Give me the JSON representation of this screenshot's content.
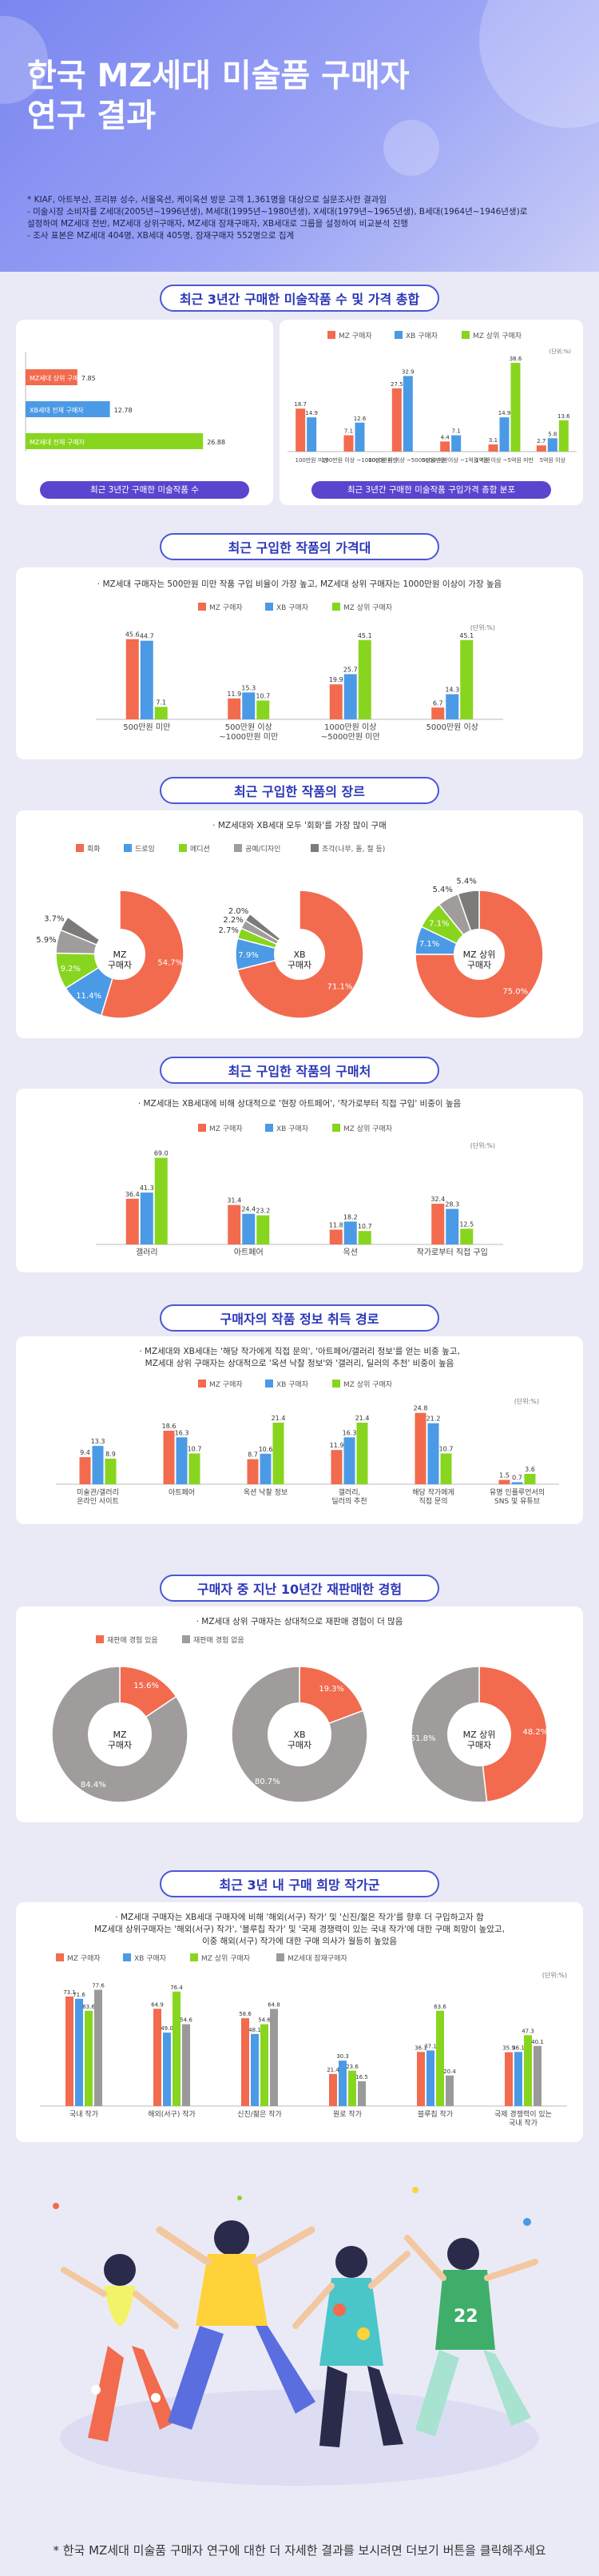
{
  "hero": {
    "title": "한국 MZ세대 미술품 구매자\n연구 결과",
    "notes": [
      "* KIAF, 아트부산, 프리뷰 성수, 서울옥션, 케이옥션 방문 고객 1,361명을 대상으로 실문조사한 결과임",
      "  - 미술시장 소비자를 Z세대(2005년~1996년생), M세대(1995년~1980년생), X세대(1979년~1965년생), B세대(1964년~1946년생)로\n    설정하여 MZ세대 전반, MZ세대 상위구매자, MZ세대 잠재구매자, XB세대로 그룹을 설정하여 비교분석 진행",
      "  - 조사 표본은 MZ세대 404명, XB세대 405명, 잠재구매자 552명으로 집계"
    ]
  },
  "colors": {
    "mz": "#f26b4e",
    "xb": "#4b9ae6",
    "top": "#88d51f",
    "latent": "#9a9a9a",
    "gray": "#a09c9c"
  },
  "sections": {
    "s1": {
      "title": "최근 3년간 구매한 미술작품 수 및 가격 총합",
      "left_label": "최근 3년간 구매한 미술작품 수",
      "right_label": "최근 3년간 구매한 미술작품 구입가격 총합 분포"
    },
    "s2": {
      "title": "최근 구입한 작품의 가격대",
      "desc": "· MZ세대 구매자는 500만원 미만 작품 구입 비율이 가장 높고, MZ세대 상위 구매자는 1000만원 이상이 가장 높음"
    },
    "s3": {
      "title": "최근 구입한 작품의 장르",
      "desc": "· MZ세대와 XB세대 모두 '회화'를 가장 많이 구매"
    },
    "s4": {
      "title": "최근 구입한 작품의 구매처",
      "desc": "· MZ세대는 XB세대에 비해 상대적으로 '현장 아트페어', '작가로부터 직접 구입' 비중이 높음"
    },
    "s5": {
      "title": "구매자의 작품 정보 취득 경로",
      "desc": "· MZ세대와 XB세대는 '해당 작가에게 직접 문의', '아트페어/갤러리 정보'를 얻는 비중 높고,\nMZ세대 상위 구매자는 상대적으로 '옥션 낙찰 정보'와 '갤러리, 딜러의 추천' 비중이 높음"
    },
    "s6": {
      "title": "구매자 중 지난 10년간 재판매한 경험",
      "desc": "· MZ세대 상위 구매자는 상대적으로 재판매 경험이 더 많음"
    },
    "s7": {
      "title": "최근 3년 내 구매 희망 작가군",
      "desc": "· MZ세대 구매자는 XB세대 구매자에 비해 '해외(서구) 작가' 및 '신진/젊은 작가'를 향후 더 구입하고자 함\nMZ세대 상위구매자는 '해외(서구) 작가', '블루칩 작가' 및 '국제 경쟁력이 있는 국내 작가'에 대한 구매 희망이 높았고,\n이중 해외(서구) 작가에 대한 구매 의사가 월등히 높았음"
    }
  },
  "legend": {
    "mz": "MZ 구매자",
    "xb": "XB 구매자",
    "top": "MZ 상위 구매자",
    "latent": "MZ세대 잠재구매자",
    "resale_yes": "재판매 경험 있음",
    "resale_no": "재판매 경험 없음"
  },
  "unit": "(단위:%)",
  "footer": "* 한국 MZ세대 미술품 구매자 연구에 대한 더 자세한 결과를 보시려면 더보기 버튼을 클릭해주세요",
  "chart_data": [
    {
      "id": "count",
      "type": "bar",
      "orientation": "horizontal",
      "categories": [
        "MZ세대 상위 구매자",
        "XB세대 전체 구매자",
        "MZ세대 전체 구매자"
      ],
      "values": [
        7.85,
        12.78,
        26.88
      ],
      "value_labels": [
        "7.85",
        "12.78",
        "26.88"
      ],
      "xlim": [
        0,
        30
      ]
    },
    {
      "id": "total_price",
      "type": "bar",
      "categories": [
        "100만원 미만",
        "100만원 이상 ~1000만원 미만",
        "1000만원 이상 ~5000만원 미만",
        "5000만원 이상 ~1억원 미만",
        "1억원 이상 ~5억원 미만",
        "5억원 이상"
      ],
      "series": [
        {
          "name": "MZ 구매자",
          "values": [
            18.7,
            7.1,
            27.5,
            4.4,
            3.1,
            2.7
          ]
        },
        {
          "name": "XB 구매자",
          "values": [
            14.9,
            12.6,
            32.9,
            7.1,
            14.9,
            5.8
          ]
        },
        {
          "name": "MZ 상위 구매자",
          "values": [
            0,
            0,
            0,
            0,
            38.6,
            13.6
          ]
        }
      ],
      "ylim": [
        0,
        40
      ]
    },
    {
      "id": "price_range",
      "type": "bar",
      "categories": [
        "500만원 미만",
        "500만원 이상\n~1000만원 미만",
        "1000만원 이상\n~5000만원 미만",
        "5000만원 이상"
      ],
      "series": [
        {
          "name": "MZ 구매자",
          "values": [
            45.6,
            11.9,
            19.9,
            6.7
          ]
        },
        {
          "name": "XB 구매자",
          "values": [
            44.7,
            15.3,
            25.7,
            14.3
          ]
        },
        {
          "name": "MZ 상위 구매자",
          "values": [
            7.1,
            10.7,
            45.1,
            45.1
          ]
        }
      ],
      "ylim": [
        0,
        50
      ]
    },
    {
      "id": "genre",
      "type": "pie",
      "legend": [
        "회화",
        "드로잉",
        "에디션",
        "공예/디자인",
        "조각(나무, 돌, 철 등)"
      ],
      "colors": [
        "#f26b4e",
        "#4b9ae6",
        "#88d51f",
        "#a09c9c",
        "#7d7a7a"
      ],
      "pies": [
        {
          "name": "MZ 구매자",
          "values": [
            54.7,
            11.4,
            9.2,
            5.9,
            3.7
          ]
        },
        {
          "name": "XB 구매자",
          "values": [
            71.1,
            7.9,
            2.7,
            2.2,
            2.0
          ]
        },
        {
          "name": "MZ 상위 구매자",
          "values": [
            75.0,
            7.1,
            7.1,
            5.4,
            5.4
          ]
        }
      ]
    },
    {
      "id": "purchase_channel",
      "type": "bar",
      "categories": [
        "갤러리",
        "아트페어",
        "옥션",
        "작가로부터 직접 구입"
      ],
      "series": [
        {
          "name": "MZ 구매자",
          "values": [
            36.4,
            31.4,
            11.8,
            32.4
          ]
        },
        {
          "name": "XB 구매자",
          "values": [
            41.3,
            24.4,
            18.2,
            28.3
          ]
        },
        {
          "name": "MZ 상위 구매자",
          "values": [
            69.0,
            23.2,
            10.7,
            12.5
          ]
        }
      ],
      "ylim": [
        0,
        70
      ]
    },
    {
      "id": "info_source",
      "type": "bar",
      "categories": [
        "미술관/갤러리\n온라인 사이트",
        "아트페어",
        "옥션 낙찰 정보",
        "갤러리,\n딜러의 추천",
        "해당 작가에게\n직접 문의",
        "유명 인플루언서의\nSNS 및 유튜브"
      ],
      "series": [
        {
          "name": "MZ 구매자",
          "values": [
            9.4,
            18.6,
            8.7,
            11.9,
            24.8,
            1.5
          ]
        },
        {
          "name": "XB 구매자",
          "values": [
            13.3,
            16.3,
            10.6,
            16.3,
            21.2,
            0.7
          ]
        },
        {
          "name": "MZ 상위 구매자",
          "values": [
            8.9,
            10.7,
            21.4,
            21.4,
            10.7,
            3.6
          ]
        }
      ],
      "ylim": [
        0,
        25
      ]
    },
    {
      "id": "resale",
      "type": "pie",
      "legend": [
        "재판매 경험 있음",
        "재판매 경험 없음"
      ],
      "colors": [
        "#f26b4e",
        "#a09c9c"
      ],
      "pies": [
        {
          "name": "MZ 구매자",
          "values": [
            15.6,
            84.4
          ]
        },
        {
          "name": "XB 구매자",
          "values": [
            19.3,
            80.7
          ]
        },
        {
          "name": "MZ 상위 구매자",
          "values": [
            48.2,
            51.8
          ]
        }
      ]
    },
    {
      "id": "wish_artist",
      "type": "bar",
      "categories": [
        "국내 작가",
        "해외(서구) 작가",
        "신진/젊은 작가",
        "원로 작가",
        "블루칩 작가",
        "국제 경쟁력이 있는\n국내 작가"
      ],
      "series": [
        {
          "name": "MZ 구매자",
          "values": [
            73.1,
            64.9,
            58.6,
            21.4,
            36.1,
            35.9
          ]
        },
        {
          "name": "XB 구매자",
          "values": [
            71.6,
            49.0,
            48.1,
            30.3,
            37.1,
            36.1
          ]
        },
        {
          "name": "MZ 상위 구매자",
          "values": [
            63.6,
            76.4,
            54.6,
            23.6,
            63.6,
            47.3
          ]
        },
        {
          "name": "MZ세대 잠재구매자",
          "values": [
            77.6,
            54.6,
            64.8,
            16.5,
            20.4,
            40.1
          ]
        }
      ],
      "ylim": [
        0,
        80
      ]
    }
  ]
}
